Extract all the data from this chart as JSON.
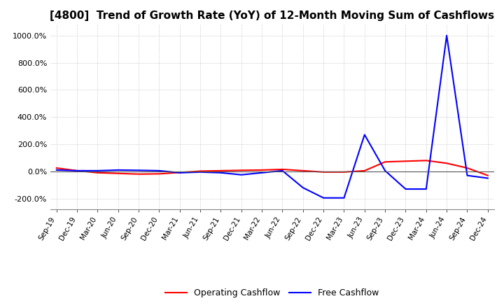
{
  "title": "[4800]  Trend of Growth Rate (YoY) of 12-Month Moving Sum of Cashflows",
  "ylim": [
    -280,
    1080
  ],
  "yticks": [
    -200,
    0,
    200,
    400,
    600,
    800,
    1000
  ],
  "x_labels": [
    "Sep-19",
    "Dec-19",
    "Mar-20",
    "Jun-20",
    "Sep-20",
    "Dec-20",
    "Mar-21",
    "Jun-21",
    "Sep-21",
    "Dec-21",
    "Mar-22",
    "Jun-22",
    "Sep-22",
    "Dec-22",
    "Mar-23",
    "Jun-23",
    "Sep-23",
    "Dec-23",
    "Mar-24",
    "Jun-24",
    "Sep-24",
    "Dec-24"
  ],
  "operating_cashflow": [
    25,
    5,
    -10,
    -15,
    -20,
    -18,
    -8,
    2,
    5,
    8,
    10,
    15,
    5,
    -5,
    -5,
    5,
    70,
    75,
    80,
    60,
    25,
    -30
  ],
  "free_cashflow": [
    10,
    5,
    5,
    10,
    8,
    5,
    -10,
    -5,
    -10,
    -25,
    -10,
    5,
    -120,
    -195,
    -195,
    270,
    5,
    -130,
    -130,
    1000,
    -30,
    -50
  ],
  "operating_color": "#ff0000",
  "free_color": "#0000ff",
  "background_color": "#ffffff",
  "grid_color": "#bbbbbb",
  "title_fontsize": 11,
  "legend_entries": [
    "Operating Cashflow",
    "Free Cashflow"
  ]
}
